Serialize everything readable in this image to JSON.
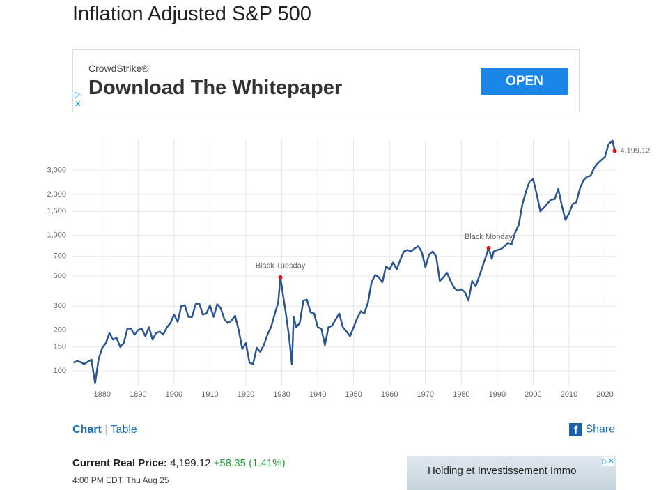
{
  "page": {
    "title": "Inflation Adjusted S&P 500",
    "ad": {
      "brand": "CrowdStrike®",
      "headline": "Download The Whitepaper",
      "button": "OPEN"
    },
    "tabs": [
      "Chart",
      "Table"
    ],
    "share": "Share",
    "price": {
      "label": "Current Real Price:",
      "value": "4,199.12",
      "change": "+58.35 (1.41%)",
      "time": "4:00 PM EDT, Thu Aug 25"
    },
    "ad2": "Holding et Investissement Immo"
  },
  "chart_data": {
    "type": "line",
    "yscale": "log",
    "grid": true,
    "xlim": [
      1871.7,
      2023
    ],
    "ylim": [
      78,
      5100
    ],
    "xticks": [
      1880,
      1890,
      1900,
      1910,
      1920,
      1930,
      1940,
      1950,
      1960,
      1970,
      1980,
      1990,
      2000,
      2010,
      2020
    ],
    "yticks": [
      100,
      150,
      200,
      300,
      500,
      700,
      {
        "value": 1000,
        "label": "1,000"
      },
      {
        "value": 1500,
        "label": "1,500"
      },
      {
        "value": 2000,
        "label": "2,000"
      },
      {
        "value": 3000,
        "label": "3,000"
      }
    ],
    "x": [
      1872,
      1873,
      1874,
      1875,
      1876,
      1877,
      1878,
      1879,
      1880,
      1881,
      1882,
      1883,
      1884,
      1885,
      1886,
      1887,
      1888,
      1889,
      1890,
      1891,
      1892,
      1893,
      1894,
      1895,
      1896,
      1897,
      1898,
      1899,
      1900,
      1901,
      1902,
      1903,
      1904,
      1905,
      1906,
      1907,
      1908,
      1909,
      1910,
      1911,
      1912,
      1913,
      1914,
      1915,
      1916,
      1917,
      1918,
      1919,
      1920,
      1921,
      1922,
      1923,
      1924,
      1925,
      1926,
      1927,
      1928,
      1929,
      1929.6,
      1931,
      1932,
      1932.8,
      1933.3,
      1934,
      1935,
      1936,
      1937,
      1938,
      1939,
      1940,
      1941,
      1942,
      1943,
      1944,
      1945,
      1946,
      1947,
      1948,
      1949,
      1950,
      1951,
      1952,
      1953,
      1954,
      1955,
      1956,
      1957,
      1958,
      1959,
      1960,
      1961,
      1962,
      1963,
      1964,
      1965,
      1966,
      1967,
      1968,
      1969,
      1970,
      1971,
      1972,
      1973,
      1974,
      1975,
      1976,
      1977,
      1978,
      1979,
      1980,
      1981,
      1982,
      1983,
      1984,
      1985,
      1986,
      1987.6,
      1988.5,
      1989,
      1990,
      1991,
      1992,
      1993,
      1994,
      1995,
      1996,
      1997,
      1998,
      1999,
      2000,
      2001,
      2002,
      2003,
      2004,
      2005,
      2006,
      2007,
      2008,
      2009,
      2010,
      2011,
      2012,
      2013,
      2014,
      2015,
      2016,
      2017,
      2018,
      2019,
      2020,
      2021,
      2022.1,
      2022.7
    ],
    "series": [
      {
        "color": "#2b5591",
        "values": [
          115,
          118,
          116,
          112,
          117,
          121,
          81,
          122,
          148,
          160,
          190,
          170,
          175,
          150,
          160,
          205,
          205,
          185,
          200,
          205,
          180,
          210,
          170,
          190,
          195,
          185,
          210,
          225,
          260,
          230,
          300,
          305,
          250,
          250,
          310,
          315,
          260,
          265,
          305,
          250,
          310,
          290,
          240,
          225,
          235,
          255,
          200,
          145,
          160,
          115,
          112,
          148,
          138,
          155,
          185,
          210,
          260,
          320,
          490,
          280,
          180,
          112,
          250,
          210,
          225,
          330,
          335,
          270,
          265,
          210,
          205,
          155,
          210,
          215,
          240,
          265,
          210,
          195,
          180,
          210,
          245,
          275,
          265,
          320,
          450,
          510,
          490,
          450,
          590,
          560,
          630,
          560,
          660,
          760,
          780,
          760,
          800,
          830,
          750,
          580,
          720,
          760,
          700,
          460,
          490,
          530,
          460,
          410,
          390,
          400,
          380,
          330,
          460,
          420,
          500,
          600,
          805,
          670,
          760,
          780,
          790,
          830,
          880,
          860,
          1050,
          1200,
          1700,
          2100,
          2500,
          2600,
          2000,
          1500,
          1600,
          1720,
          1830,
          1850,
          2200,
          1650,
          1300,
          1450,
          1700,
          1750,
          2200,
          2550,
          2700,
          2750,
          3150,
          3400,
          3600,
          3800,
          4700,
          5000,
          4199.12
        ]
      }
    ],
    "annotations": [
      {
        "label": "Black Tuesday",
        "x": 1929.6,
        "value": 490
      },
      {
        "label": "Black Monday",
        "x": 1987.6,
        "value": 805
      }
    ],
    "end_point": {
      "x": 2022.7,
      "value": 4199.12,
      "label": "4,199.12"
    },
    "marker_color": "#e0141e"
  }
}
